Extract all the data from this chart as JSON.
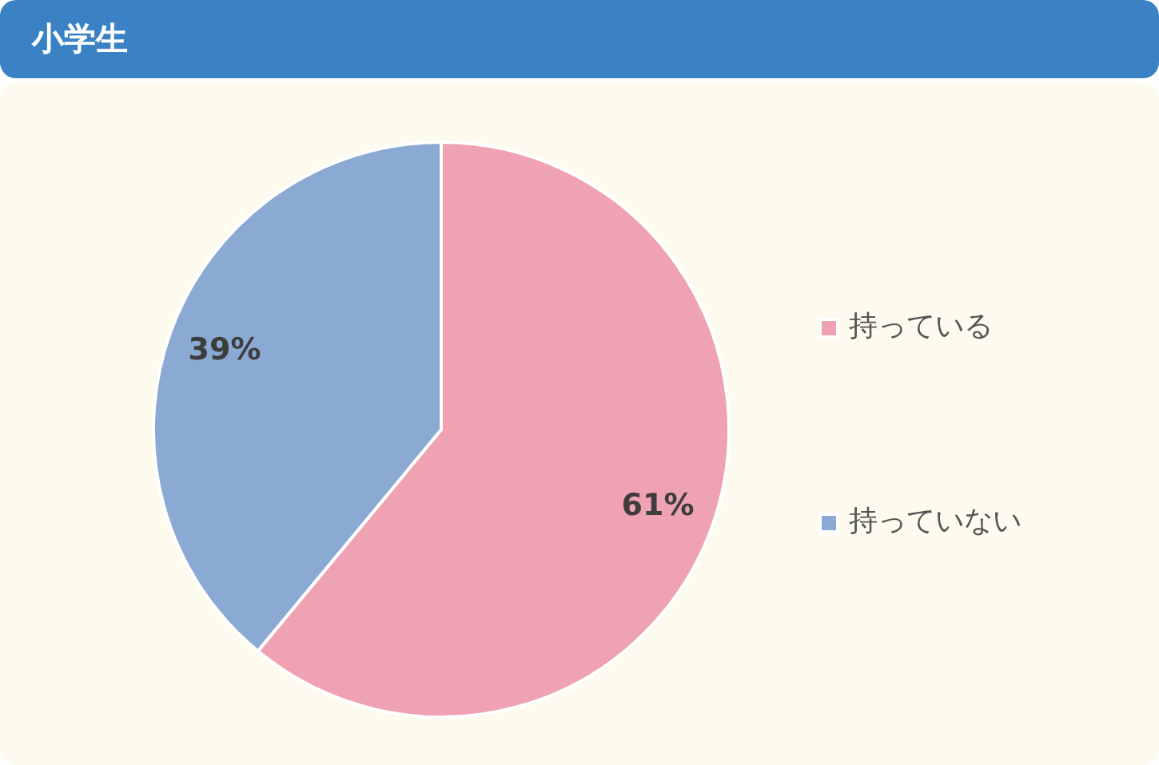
{
  "chart_data": {
    "type": "pie",
    "title": "小学生",
    "categories": [
      "持っている",
      "持っていない"
    ],
    "values": [
      61,
      39
    ],
    "colors": [
      "#efa2b2",
      "#8aa9d3"
    ],
    "value_labels": [
      "61%",
      "39%"
    ],
    "legend": "right"
  }
}
